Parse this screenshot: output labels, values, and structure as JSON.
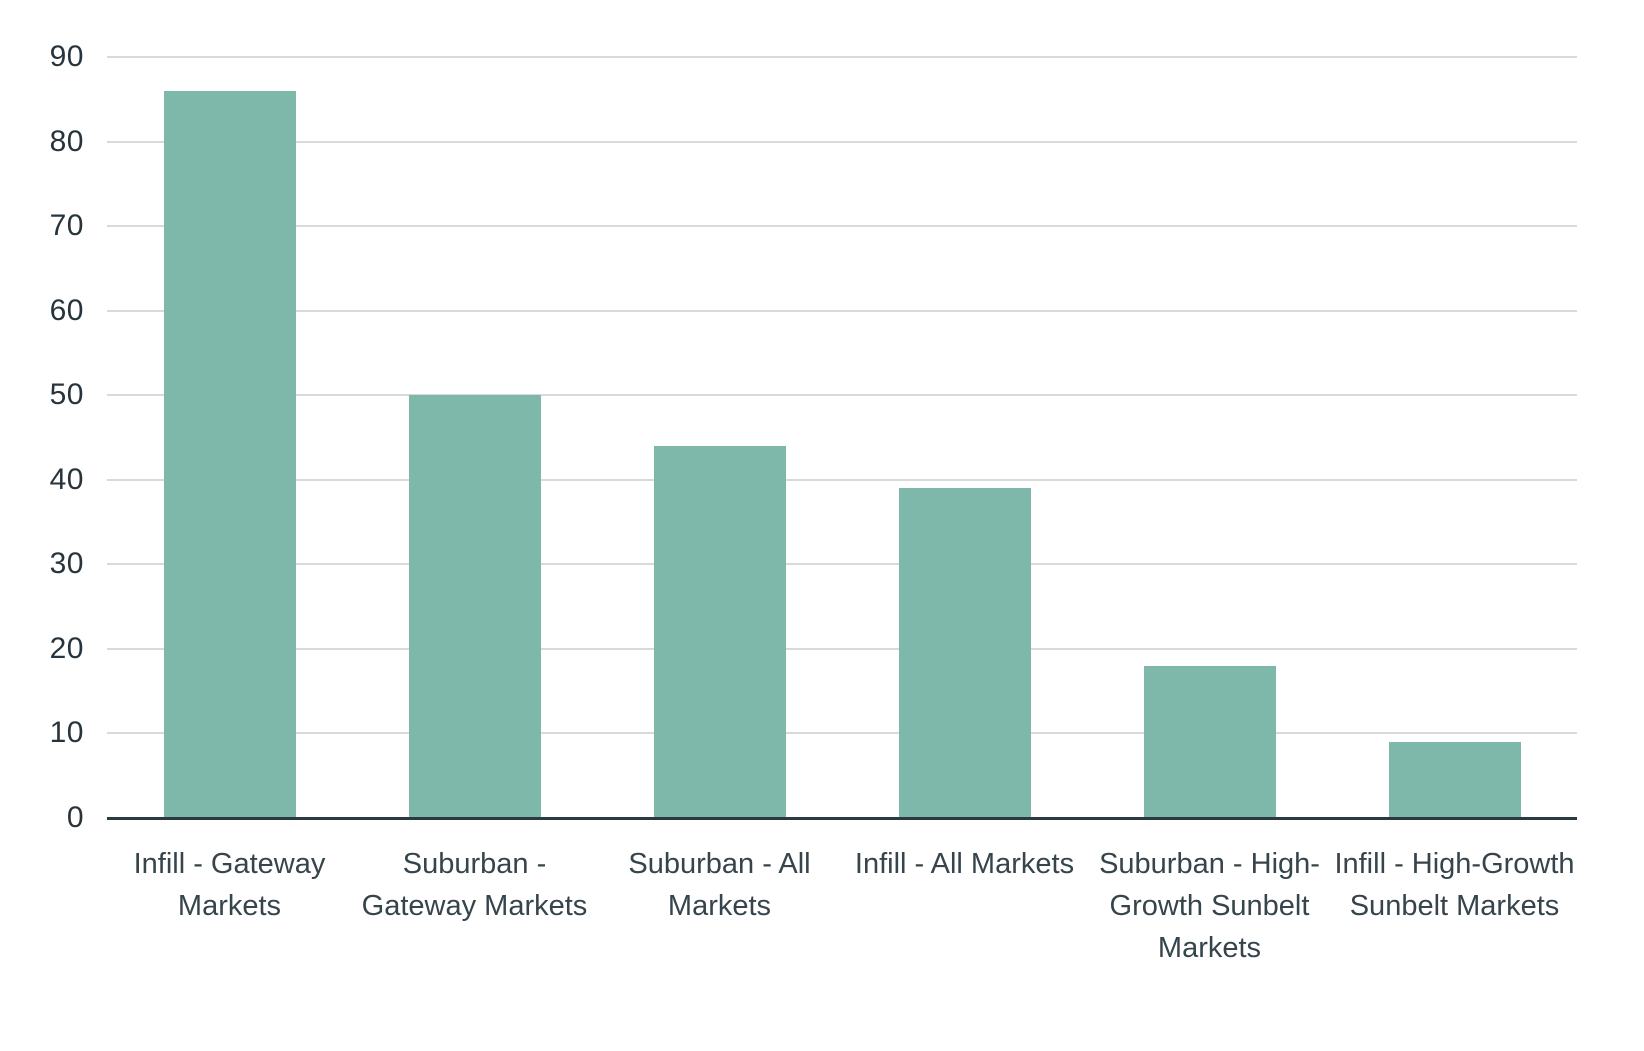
{
  "chart_data": {
    "type": "bar",
    "title": "",
    "xlabel": "",
    "ylabel": "",
    "categories": [
      "Infill - Gateway Markets",
      "Suburban - Gateway Markets",
      "Suburban - All Markets",
      "Infill - All Markets",
      "Suburban - High-Growth Sunbelt Markets",
      "Infill - High-Growth Sunbelt Markets"
    ],
    "display_labels": [
      "Infill - Gateway\nMarkets",
      "Suburban -\nGateway Markets",
      "Suburban - All\nMarkets",
      "Infill - All Markets",
      "Suburban - High-\nGrowth Sunbelt\nMarkets",
      "Infill - High-Growth\nSunbelt Markets"
    ],
    "values": [
      86,
      50,
      44,
      39,
      18,
      9
    ],
    "ylim": [
      0,
      90
    ],
    "yticks": [
      0,
      10,
      20,
      30,
      40,
      50,
      60,
      70,
      80,
      90
    ],
    "grid": "horizontal",
    "legend": "none",
    "colors": {
      "bar": "#7db8aa",
      "gridline": "#d9d9d9",
      "axis_line": "#2b3a40",
      "tick_text": "#27343c",
      "label_text": "#36444c",
      "background": "#ffffff"
    }
  }
}
